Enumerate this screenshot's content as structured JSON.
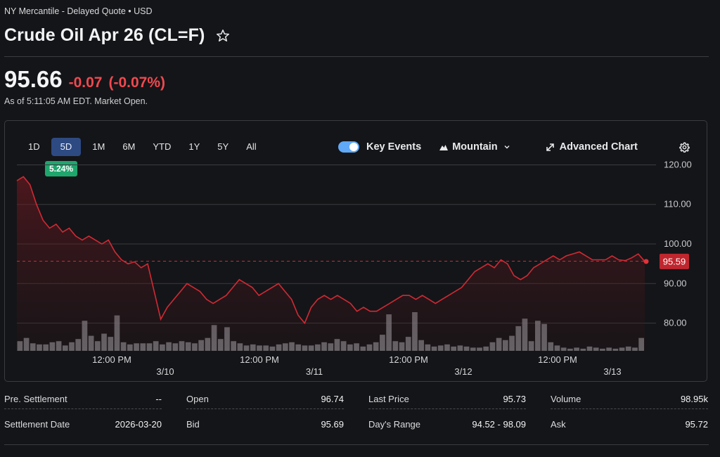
{
  "header": {
    "exchange_line": "NY Mercantile - Delayed Quote • USD",
    "title": "Crude Oil Apr 26 (CL=F)"
  },
  "quote": {
    "price": "95.66",
    "change": "-0.07",
    "change_pct": "(-0.07%)",
    "as_of": "As of 5:11:05 AM EDT. Market Open."
  },
  "chart_toolbar": {
    "ranges": [
      "1D",
      "5D",
      "1M",
      "6M",
      "YTD",
      "1Y",
      "5Y",
      "All"
    ],
    "active_range": "5D",
    "range_change": "5.24%",
    "key_events_label": "Key Events",
    "key_events_on": true,
    "chart_type_label": "Mountain",
    "advanced_chart_label": "Advanced Chart"
  },
  "colors": {
    "down": "#f0494f",
    "line": "#d12a34",
    "badge_green": "#1ea66d",
    "active_range_bg": "#2e4a82",
    "toggle_on": "#60a9f7"
  },
  "chart_data": {
    "type": "area",
    "y_ticks": [
      "120.00",
      "110.00",
      "100.00",
      "90.00",
      "80.00"
    ],
    "ylim": [
      73,
      121.5
    ],
    "x_time_labels": [
      "12:00 PM",
      "12:00 PM",
      "12:00 PM",
      "12:00 PM"
    ],
    "x_date_labels": [
      "3/10",
      "3/11",
      "3/12",
      "3/13"
    ],
    "reference_price": 95.66,
    "last_price_label": "95.59",
    "last_price": 95.59,
    "series": [
      {
        "values": [
          116,
          117,
          115,
          110,
          106,
          104,
          105,
          103,
          104,
          102,
          101,
          102,
          101,
          100,
          101,
          98,
          96,
          95,
          95.5,
          94,
          95,
          88,
          81,
          84,
          86,
          88,
          90,
          89,
          88,
          86,
          85,
          86,
          87,
          89,
          91,
          90,
          89,
          87,
          88,
          89,
          90,
          88,
          86,
          82,
          80,
          84,
          86,
          87,
          86,
          87,
          86,
          85,
          83,
          84,
          83,
          83,
          84,
          85,
          86,
          87,
          87,
          86,
          87,
          86,
          85,
          86,
          87,
          88,
          89,
          91,
          93,
          94,
          95,
          94,
          96,
          95,
          92,
          91,
          92,
          94,
          95,
          96,
          97,
          96,
          97,
          97.5,
          98,
          97,
          96,
          96,
          96,
          97,
          96,
          95.8,
          96.5,
          97.5,
          95.6
        ],
        "volume": [
          9,
          12,
          7,
          6,
          6,
          8,
          9,
          5,
          8,
          11,
          28,
          14,
          9,
          16,
          13,
          33,
          8,
          6,
          7,
          7,
          7,
          9,
          6,
          8,
          7,
          9,
          8,
          7,
          10,
          12,
          24,
          11,
          22,
          9,
          7,
          5,
          6,
          5,
          5,
          4,
          6,
          7,
          8,
          6,
          5,
          5,
          6,
          8,
          7,
          11,
          9,
          6,
          7,
          4,
          6,
          8,
          15,
          34,
          9,
          8,
          13,
          36,
          10,
          6,
          4,
          5,
          6,
          4,
          5,
          4,
          3,
          3,
          4,
          8,
          12,
          10,
          14,
          23,
          30,
          9,
          28,
          25,
          8,
          5,
          3,
          2,
          3,
          2,
          4,
          3,
          2,
          3,
          2,
          3,
          4,
          3,
          12
        ]
      }
    ]
  },
  "stats": [
    {
      "label": "Pre. Settlement",
      "value": "--"
    },
    {
      "label": "Settlement Date",
      "value": "2026-03-20"
    },
    {
      "label": "Open",
      "value": "96.74"
    },
    {
      "label": "Bid",
      "value": "95.69"
    },
    {
      "label": "Last Price",
      "value": "95.73"
    },
    {
      "label": "Day's Range",
      "value": "94.52 - 98.09"
    },
    {
      "label": "Volume",
      "value": "98.95k"
    },
    {
      "label": "Ask",
      "value": "95.72"
    }
  ]
}
